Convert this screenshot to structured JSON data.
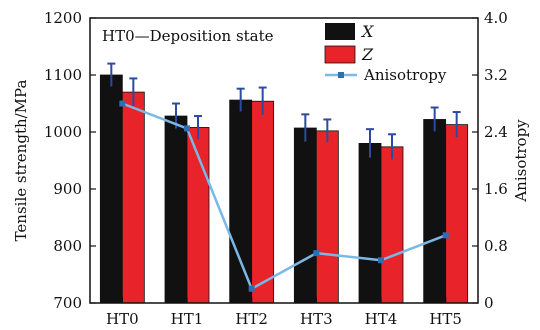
{
  "chart_data": {
    "type": "bar",
    "title": "",
    "annotation": "HT0—Deposition state",
    "xlabel": "",
    "ylabel": "Tensile strength/MPa",
    "y2label": "Anisotropy",
    "categories": [
      "HT0",
      "HT1",
      "HT2",
      "HT3",
      "HT4",
      "HT5"
    ],
    "ylim": [
      700,
      1200
    ],
    "yticks": [
      "700",
      "800",
      "900",
      "1000",
      "1100",
      "1200"
    ],
    "y2lim": [
      0,
      4.0
    ],
    "y2ticks": [
      "0",
      "0.8",
      "1.6",
      "2.4",
      "3.2",
      "4.0"
    ],
    "legend_position": "top-right",
    "grid": false,
    "series": [
      {
        "name": "X",
        "kind": "bar",
        "axis": "left",
        "color": "#111111",
        "values": [
          1100,
          1028,
          1056,
          1007,
          980,
          1022
        ],
        "errors": [
          20,
          22,
          20,
          24,
          25,
          21
        ]
      },
      {
        "name": "Z",
        "kind": "bar",
        "axis": "left",
        "color": "#e8232a",
        "values": [
          1070,
          1008,
          1054,
          1002,
          974,
          1013
        ],
        "errors": [
          24,
          20,
          24,
          20,
          22,
          22
        ]
      },
      {
        "name": "Anisotropy",
        "kind": "line",
        "axis": "right",
        "color": "#7ab8e6",
        "marker_color": "#2d6fb3",
        "values": [
          2.8,
          2.45,
          0.2,
          0.7,
          0.6,
          0.95
        ]
      }
    ],
    "error_bar_color": "#2b4aa0"
  }
}
